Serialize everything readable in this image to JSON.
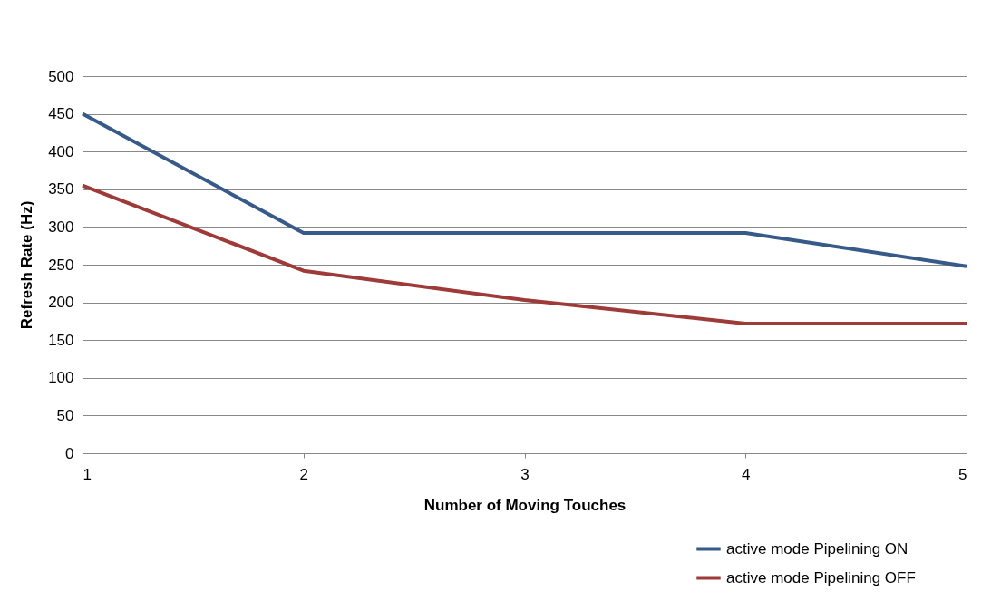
{
  "chart_data": {
    "type": "line",
    "xlabel": "Number of Moving Touches",
    "ylabel": "Refresh Rate (Hz)",
    "x": [
      1,
      2,
      3,
      4,
      5
    ],
    "series": [
      {
        "name": "active mode Pipelining ON",
        "color": "#375a88",
        "values": [
          450,
          292,
          292,
          292,
          248
        ]
      },
      {
        "name": "active mode Pipelining OFF",
        "color": "#9e3a37",
        "values": [
          355,
          242,
          203,
          172,
          172
        ]
      }
    ],
    "xlim": [
      1,
      5
    ],
    "xticks": [
      1,
      2,
      3,
      4,
      5
    ],
    "ylim": [
      0,
      500
    ],
    "yticks": [
      0,
      50,
      100,
      150,
      200,
      250,
      300,
      350,
      400,
      450,
      500
    ],
    "grid": "y",
    "legend": "bottom right",
    "marker": "none",
    "line_style": "solid"
  }
}
